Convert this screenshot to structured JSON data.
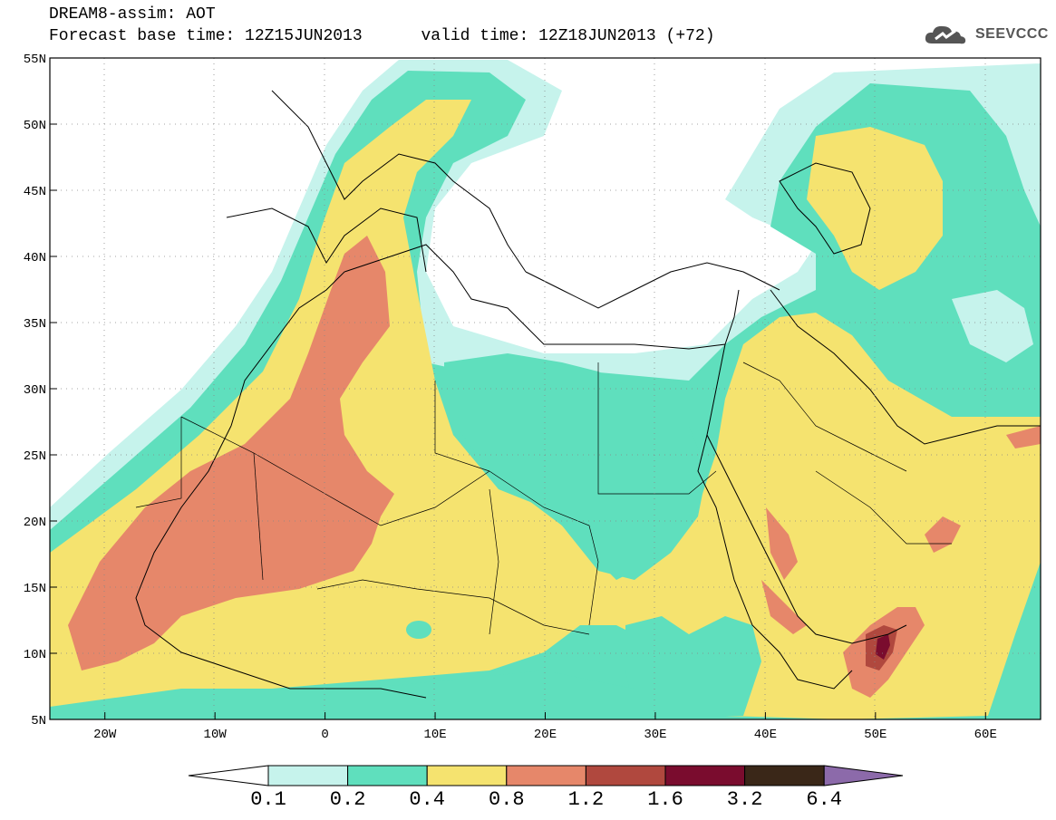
{
  "header": {
    "title": "DREAM8-assim: AOT",
    "subtitle": "Forecast base time: 12Z15JUN2013      valid time: 12Z18JUN2013 (+72)"
  },
  "logo": {
    "text": "SEEVCCC",
    "icon": "cloud-icon"
  },
  "map": {
    "lon_range": [
      -25,
      65
    ],
    "lat_range": [
      5,
      55
    ],
    "lon_ticks": [
      "20W",
      "10W",
      "0",
      "10E",
      "20E",
      "30E",
      "40E",
      "50E",
      "60E"
    ],
    "lat_ticks": [
      "55N",
      "50N",
      "45N",
      "40N",
      "35N",
      "30N",
      "25N",
      "20N",
      "15N",
      "10N",
      "5N"
    ],
    "grid": "dotted",
    "variable": "AOT"
  },
  "colorbar": {
    "levels": [
      "0.1",
      "0.2",
      "0.4",
      "0.8",
      "1.2",
      "1.6",
      "3.2",
      "6.4"
    ],
    "colors": [
      "#c6f3ec",
      "#5fdfbd",
      "#f5e36f",
      "#e6876a",
      "#b0483e",
      "#7a0c2e",
      "#3a2718",
      "#8c6aaa"
    ],
    "under_color": "#ffffff",
    "over_color": "#8c6aaa"
  }
}
